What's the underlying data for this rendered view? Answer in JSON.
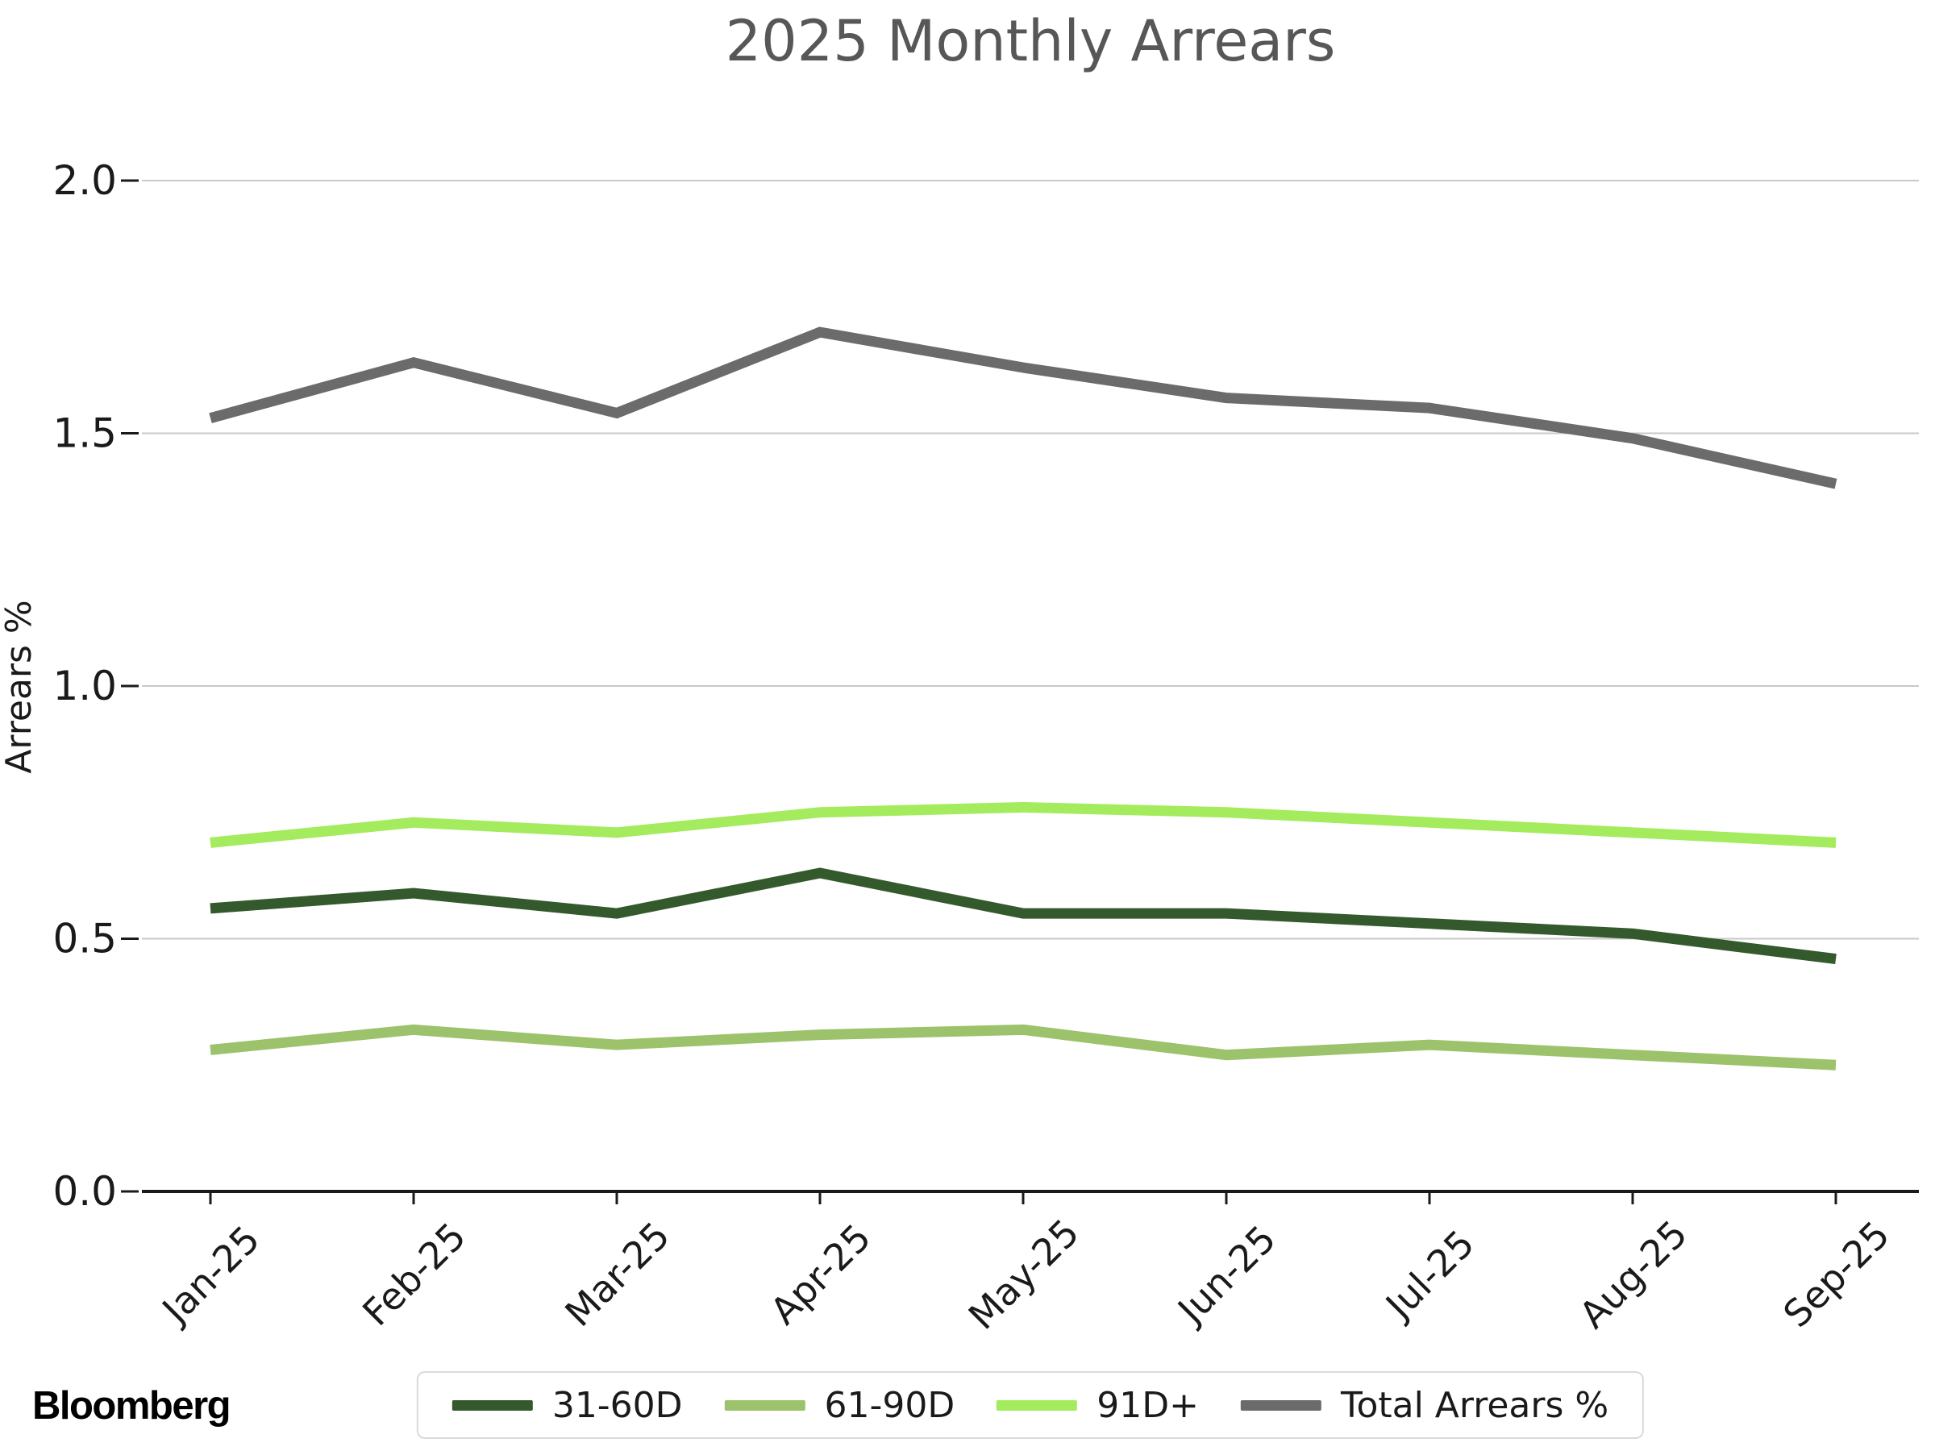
{
  "footer": {
    "brand": "Bloomberg"
  },
  "chart_data": {
    "type": "line",
    "title": "2025 Monthly Arrears",
    "xlabel": "",
    "ylabel": "Arrears %",
    "categories": [
      "Jan-25",
      "Feb-25",
      "Mar-25",
      "Apr-25",
      "May-25",
      "Jun-25",
      "Jul-25",
      "Aug-25",
      "Sep-25"
    ],
    "y_ticks": {
      "values": [
        0.0,
        0.5,
        1.0,
        1.5,
        2.0
      ],
      "labels": [
        "0.0",
        "0.5",
        "1.0",
        "1.5",
        "2.0"
      ]
    },
    "ylim": [
      0.0,
      2.15
    ],
    "grid": "horizontal",
    "legend_position": "bottom-center",
    "line_width": 13,
    "colors": {
      "grid": "#c9c9c9",
      "axis": "#1a1a1a",
      "title": "#575757",
      "tick_text": "#1a1a1a"
    },
    "series": [
      {
        "name": "31-60D",
        "color": "#34592d",
        "values": [
          0.56,
          0.59,
          0.55,
          0.63,
          0.55,
          0.55,
          0.53,
          0.51,
          0.46
        ]
      },
      {
        "name": "61-90D",
        "color": "#9cc26b",
        "values": [
          0.28,
          0.32,
          0.29,
          0.31,
          0.32,
          0.27,
          0.29,
          0.27,
          0.25
        ]
      },
      {
        "name": "91D+",
        "color": "#a4eb5e",
        "values": [
          0.69,
          0.73,
          0.71,
          0.75,
          0.76,
          0.75,
          0.73,
          0.71,
          0.69
        ]
      },
      {
        "name": "Total Arrears %",
        "color": "#6b6b6b",
        "values": [
          1.53,
          1.64,
          1.54,
          1.7,
          1.63,
          1.57,
          1.55,
          1.49,
          1.4
        ]
      }
    ]
  }
}
